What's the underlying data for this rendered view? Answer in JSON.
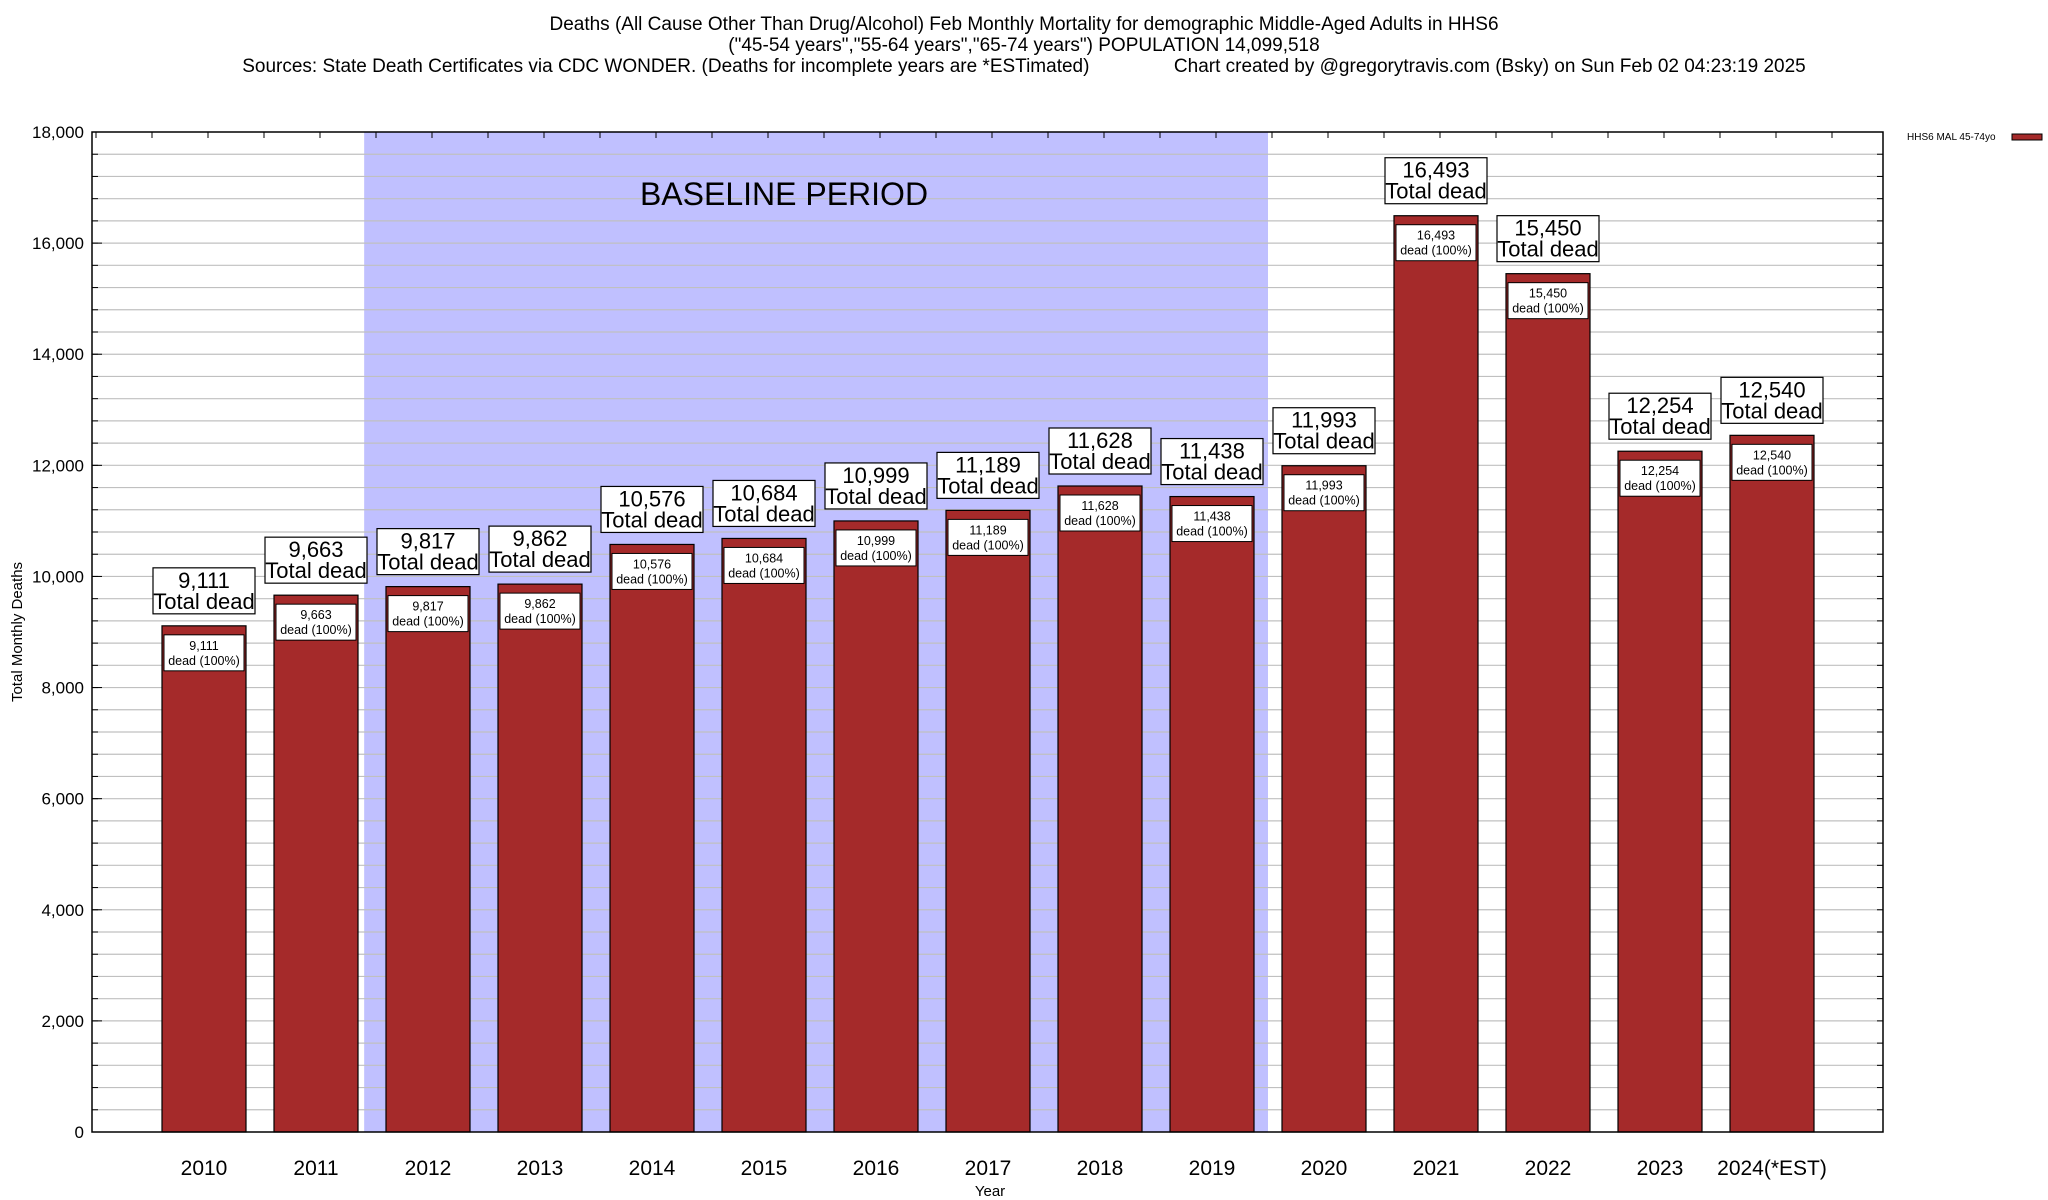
{
  "header": {
    "title_line1": "Deaths (All Cause Other Than Drug/Alcohol) Feb Monthly Mortality for demographic Middle-Aged Adults in HHS6",
    "title_line2": "(\"45-54 years\",\"55-64 years\",\"65-74 years\") POPULATION 14,099,518",
    "sources": "Sources: State Death Certificates via CDC WONDER. (Deaths for incomplete years are *ESTimated)",
    "credit": "Chart created by @gregorytravis.com (Bsky) on Sun Feb 02 04:23:19 2025"
  },
  "colors": {
    "bar": "#a52a2a",
    "baseline_shade": "#c0c0ff",
    "grid": "#c0c0c0"
  },
  "chart_data": {
    "type": "bar",
    "title": "Deaths (All Cause Other Than Drug/Alcohol) Feb Monthly Mortality for demographic Middle-Aged Adults in HHS6",
    "xlabel": "Year",
    "ylabel": "Total Monthly Deaths",
    "ylim": [
      0,
      18000
    ],
    "yticks": [
      0,
      2000,
      4000,
      6000,
      8000,
      10000,
      12000,
      14000,
      16000,
      18000
    ],
    "ytick_labels": [
      "0",
      "2,000",
      "4,000",
      "6,000",
      "8,000",
      "10,000",
      "12,000",
      "14,000",
      "16,000",
      "18,000"
    ],
    "minor_grid_step": 400,
    "grid": true,
    "categories": [
      "2010",
      "2011",
      "2012",
      "2013",
      "2014",
      "2015",
      "2016",
      "2017",
      "2018",
      "2019",
      "2020",
      "2021",
      "2022",
      "2023",
      "2024(*EST)"
    ],
    "series": [
      {
        "name": "HHS6 MAL 45-74yo",
        "values": [
          9111,
          9663,
          9817,
          9862,
          10576,
          10684,
          10999,
          11189,
          11628,
          11438,
          11993,
          16493,
          15450,
          12254,
          12540
        ]
      }
    ],
    "top_labels": [
      "9,111",
      "9,663",
      "9,817",
      "9,862",
      "10,576",
      "10,684",
      "10,999",
      "11,189",
      "11,628",
      "11,438",
      "11,993",
      "16,493",
      "15,450",
      "12,254",
      "12,540"
    ],
    "top_label_suffix": "Total dead",
    "inner_label_suffix": "dead (100%)",
    "annotations": [
      {
        "text": "BASELINE PERIOD",
        "span_categories": [
          "2012",
          "2019"
        ],
        "shade_start_index": 1.43,
        "shade_end_index": 9.5
      }
    ],
    "legend": {
      "entries": [
        "HHS6 MAL 45-74yo"
      ],
      "placement": "top-right outside"
    }
  }
}
